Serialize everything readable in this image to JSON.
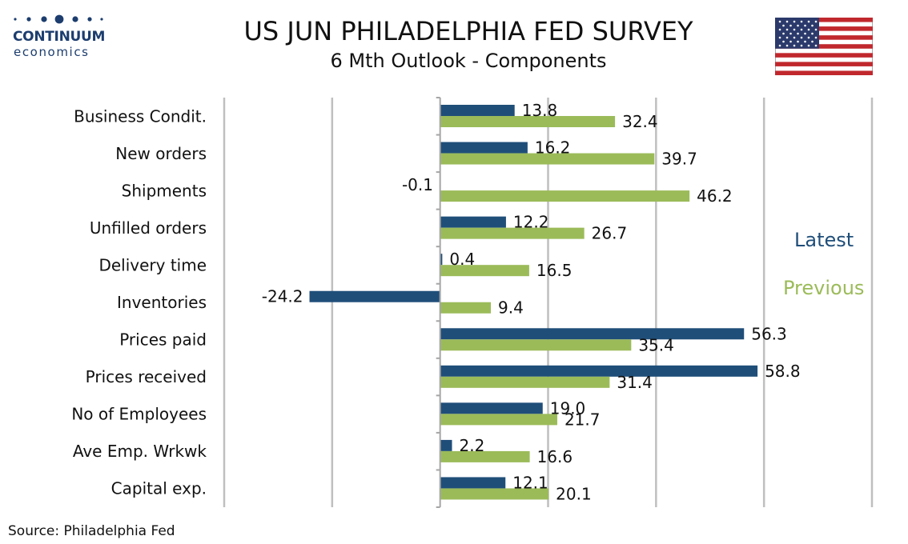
{
  "brand": {
    "name": "CONTINUUM",
    "sub": "economics"
  },
  "header": {
    "title": "US JUN PHILADELPHIA FED SURVEY",
    "subtitle": "6 Mth Outlook - Components"
  },
  "flag": {
    "icon": "us-flag-icon"
  },
  "source": "Source: Philadelphia Fed",
  "colors": {
    "latest": "#1f4e79",
    "previous": "#9bbb59",
    "grid": "#bfbfbf",
    "axis": "#a6a6a6"
  },
  "chart_data": {
    "type": "bar",
    "orientation": "horizontal",
    "categories": [
      "Business Condit.",
      "New orders",
      "Shipments",
      "Unfilled orders",
      "Delivery time",
      "Inventories",
      "Prices paid",
      "Prices received",
      "No of Employees",
      "Ave Emp. Wrkwk",
      "Capital exp."
    ],
    "series": [
      {
        "name": "Latest",
        "values": [
          13.8,
          16.2,
          -0.1,
          12.2,
          0.4,
          -24.2,
          56.3,
          58.8,
          19.0,
          2.2,
          12.1
        ]
      },
      {
        "name": "Previous",
        "values": [
          32.4,
          39.7,
          46.2,
          26.7,
          16.5,
          9.4,
          35.4,
          31.4,
          21.7,
          16.6,
          20.1
        ]
      }
    ],
    "value_labels": {
      "Latest": [
        "13.8",
        "16.2",
        "-0.1",
        "12.2",
        "0.4",
        "-24.2",
        "56.3",
        "58.8",
        "19.0",
        "2.2",
        "12.1"
      ],
      "Previous": [
        "32.4",
        "39.7",
        "46.2",
        "26.7",
        "16.5",
        "9.4",
        "35.4",
        "31.4",
        "21.7",
        "16.6",
        "20.1"
      ]
    },
    "xlim": [
      -40,
      80
    ],
    "grid_step": 20,
    "grid": true,
    "tick_labels_shown": false,
    "legend_placement": "right"
  }
}
